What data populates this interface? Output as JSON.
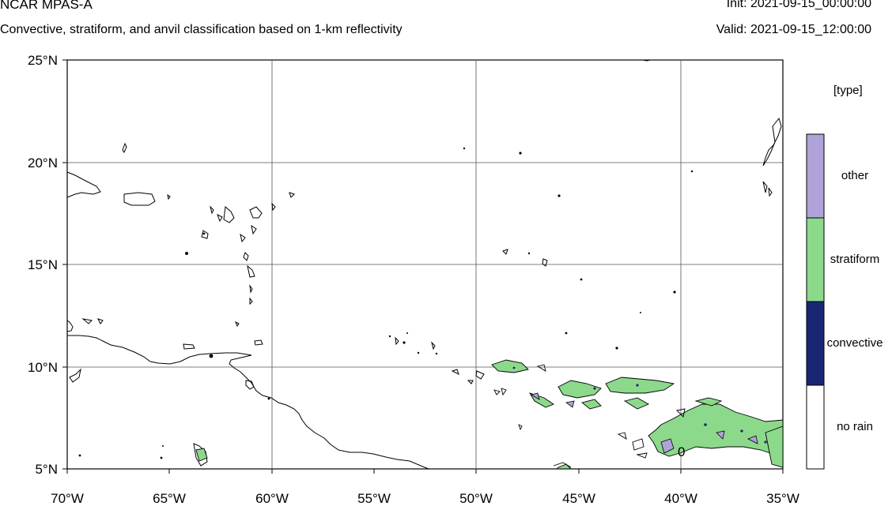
{
  "header": {
    "title": "NCAR MPAS-A",
    "subtitle": "Convective, stratiform, and anvil classification based on 1-km reflectivity",
    "init": "Init: 2021-09-15_00:00:00",
    "valid": "Valid: 2021-09-15_12:00:00"
  },
  "map": {
    "lon_labels": [
      "70°W",
      "65°W",
      "60°W",
      "55°W",
      "50°W",
      "45°W",
      "40°W",
      "35°W"
    ],
    "lat_labels": [
      "25°N",
      "20°N",
      "15°N",
      "10°N",
      "5°N"
    ],
    "lon_range": [
      -70,
      -35
    ],
    "lat_range": [
      5,
      25
    ],
    "grid": true,
    "contour_label": "0"
  },
  "legend": {
    "title": "[type]",
    "items": [
      {
        "label": "other",
        "color": "#b0a3d9"
      },
      {
        "label": "stratiform",
        "color": "#8cd98c"
      },
      {
        "label": "convective",
        "color": "#1a2673"
      },
      {
        "label": "no rain",
        "color": "#ffffff"
      }
    ]
  }
}
